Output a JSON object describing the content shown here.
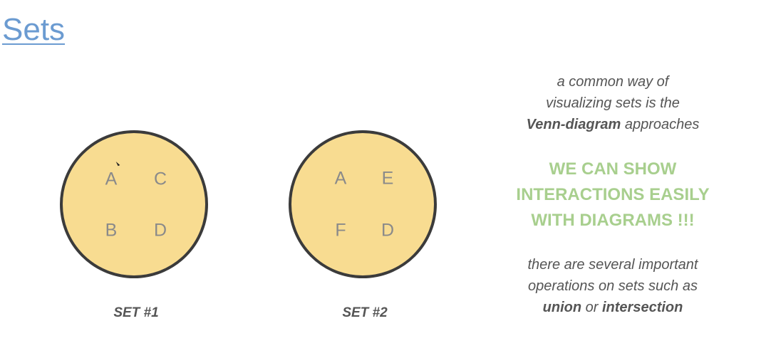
{
  "slide": {
    "title": "Sets"
  },
  "sets": [
    {
      "label": "SET #1",
      "elements": [
        "A",
        "C",
        "B",
        "D"
      ]
    },
    {
      "label": "SET #2",
      "elements": [
        "A",
        "E",
        "F",
        "D"
      ]
    }
  ],
  "notes": {
    "intro_line1": "a common way of",
    "intro_line2": "visualizing sets is the",
    "intro_bold": "Venn-diagram",
    "intro_rest": " approaches",
    "highlight_line1": "WE CAN SHOW",
    "highlight_line2": "INTERACTIONS EASILY",
    "highlight_line3": "WITH DIAGRAMS !!!",
    "ops_line1": "there are several important",
    "ops_line2": "operations on sets such as",
    "ops_union": "union",
    "ops_or": " or ",
    "ops_intersection": "intersection"
  },
  "colors": {
    "title": "#6b9bd1",
    "circle_fill": "#f8dc91",
    "circle_stroke": "#3b3b3b",
    "highlight": "#a8cf8e"
  }
}
